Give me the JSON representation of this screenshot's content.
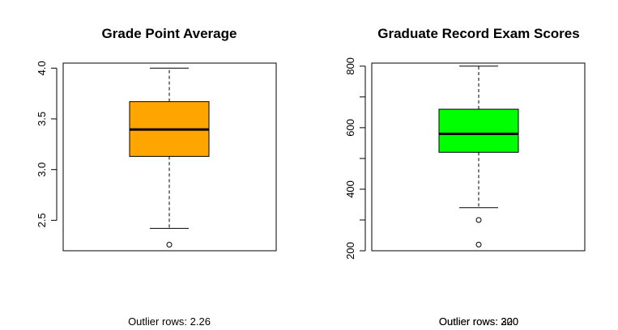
{
  "chart_data": [
    {
      "type": "boxplot",
      "title": "Grade Point Average",
      "xlabel": "",
      "ylabel": "",
      "ylim": [
        2.2,
        4.05
      ],
      "yticks": [
        2.5,
        3.0,
        3.5,
        4.0
      ],
      "ytick_labels": [
        "2.5",
        "3.0",
        "3.5",
        "4.0"
      ],
      "box": {
        "whisker_low": 2.42,
        "q1": 3.13,
        "median": 3.395,
        "q3": 3.67,
        "whisker_high": 4.0
      },
      "outliers": [
        2.26
      ],
      "fill_color": "#ffa500",
      "grid": false,
      "outlier_note": "Outlier rows:  2.26"
    },
    {
      "type": "boxplot",
      "title": "Graduate Record Exam Scores",
      "xlabel": "",
      "ylabel": "",
      "ylim": [
        200,
        810
      ],
      "yticks": [
        200,
        300,
        400,
        500,
        600,
        700,
        800
      ],
      "ytick_labels": [
        "200",
        "",
        "400",
        "",
        "600",
        "",
        "800"
      ],
      "box": {
        "whisker_low": 340,
        "q1": 520,
        "median": 580,
        "q3": 660,
        "whisker_high": 800
      },
      "outliers": [
        300,
        220
      ],
      "fill_color": "#00ff00",
      "grid": false,
      "outlier_notes": [
        "Outlier rows:  300",
        "Outlier rows:  220"
      ]
    }
  ]
}
